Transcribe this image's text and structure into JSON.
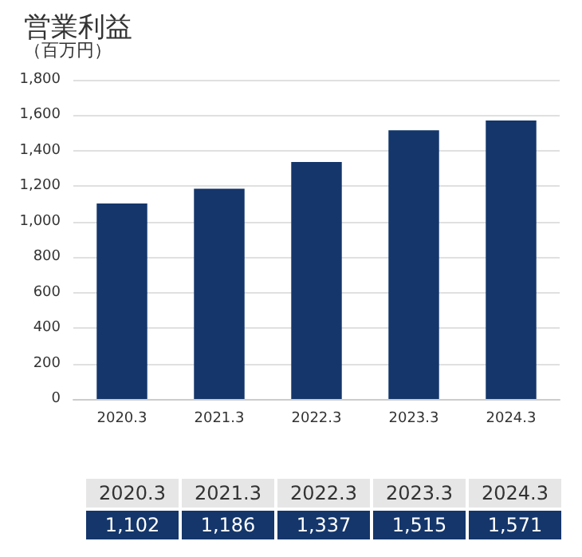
{
  "chart_data": {
    "type": "bar",
    "title": "営業利益",
    "subtitle": "（百万円）",
    "categories": [
      "2020.3",
      "2021.3",
      "2022.3",
      "2023.3",
      "2024.3"
    ],
    "values": [
      1102,
      1186,
      1337,
      1515,
      1571
    ],
    "color": "#14366b",
    "ylim": [
      0,
      1800
    ],
    "yticks": [
      0,
      200,
      400,
      600,
      800,
      {
        "value": 1000,
        "label": "1,000"
      },
      {
        "value": 1200,
        "label": "1,200"
      },
      {
        "value": 1400,
        "label": "1,400"
      },
      {
        "value": 1600,
        "label": "1,600"
      },
      {
        "value": 1800,
        "label": "1,800"
      }
    ],
    "grid": "y",
    "value_labels": [
      "1,102",
      "1,186",
      "1,337",
      "1,515",
      "1,571"
    ]
  }
}
